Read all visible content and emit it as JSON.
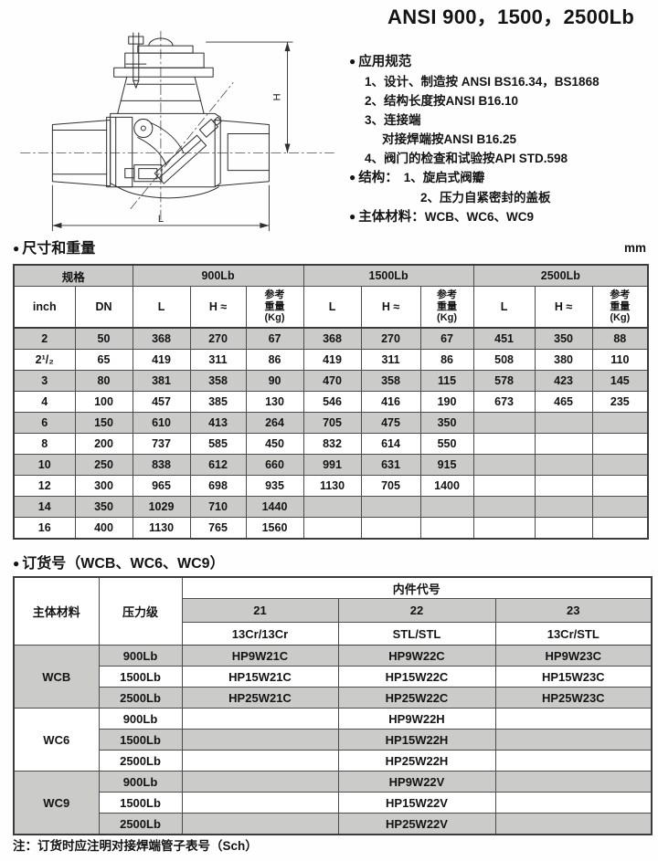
{
  "page": {
    "title": "ANSI 900，1500，2500Lb",
    "bullet": "●",
    "unit_label": "mm",
    "note": "注：订货时应注明对接焊端管子表号（Sch）"
  },
  "drawing": {
    "description": "swing check valve cross-section",
    "dim_height_label": "H",
    "dim_length_label": "L"
  },
  "specs": {
    "application": {
      "heading": "应用规范",
      "lines": [
        {
          "indent": 1,
          "text": "1、设计、制造按 ANSI BS16.34，BS1868"
        },
        {
          "indent": 1,
          "text": "2、结构长度按ANSI B16.10"
        },
        {
          "indent": 1,
          "text": "3、连接端"
        },
        {
          "indent": 2,
          "text": "对接焊端按ANSI B16.25"
        },
        {
          "indent": 1,
          "text": "4、阀门的检查和试验按API STD.598"
        }
      ]
    },
    "structure": {
      "heading": "结构：",
      "first_item": "1、旋启式阀瓣",
      "second_item": "2、压力自紧密封的盖板"
    },
    "material": {
      "heading": "主体材料：",
      "value": "WCB、WC6、WC9"
    }
  },
  "dim_table": {
    "section_title": "尺寸和重量",
    "spec_group_label": "规格",
    "pressure_groups": [
      "900Lb",
      "1500Lb",
      "2500Lb"
    ],
    "subheaders": [
      "inch",
      "DN",
      "L",
      "H ≈",
      "参考\n重量\n(Kg)",
      "L",
      "H ≈",
      "参考\n重量\n(Kg)",
      "L",
      "H ≈",
      "参考\n重量\n(Kg)"
    ],
    "rows": [
      [
        "2",
        "50",
        "368",
        "270",
        "67",
        "368",
        "270",
        "67",
        "451",
        "350",
        "88"
      ],
      [
        "2¹/₂",
        "65",
        "419",
        "311",
        "86",
        "419",
        "311",
        "86",
        "508",
        "380",
        "110"
      ],
      [
        "3",
        "80",
        "381",
        "358",
        "90",
        "470",
        "358",
        "115",
        "578",
        "423",
        "145"
      ],
      [
        "4",
        "100",
        "457",
        "385",
        "130",
        "546",
        "416",
        "190",
        "673",
        "465",
        "235"
      ],
      [
        "6",
        "150",
        "610",
        "413",
        "264",
        "705",
        "475",
        "350",
        "",
        "",
        ""
      ],
      [
        "8",
        "200",
        "737",
        "585",
        "450",
        "832",
        "614",
        "550",
        "",
        "",
        ""
      ],
      [
        "10",
        "250",
        "838",
        "612",
        "660",
        "991",
        "631",
        "915",
        "",
        "",
        ""
      ],
      [
        "12",
        "300",
        "965",
        "698",
        "935",
        "1130",
        "705",
        "1400",
        "",
        "",
        ""
      ],
      [
        "14",
        "350",
        "1029",
        "710",
        "1440",
        "",
        "",
        "",
        "",
        "",
        ""
      ],
      [
        "16",
        "400",
        "1130",
        "765",
        "1560",
        "",
        "",
        "",
        "",
        "",
        ""
      ]
    ]
  },
  "order_table": {
    "section_title": "订货号（WCB、WC6、WC9）",
    "material_header": "主体材料",
    "pressure_header": "压力级",
    "trim_header": "内件代号",
    "trim_codes": [
      "21",
      "22",
      "23"
    ],
    "trim_materials": [
      "13Cr/13Cr",
      "STL/STL",
      "13Cr/STL"
    ],
    "groups": [
      {
        "material": "WCB",
        "rows": [
          [
            "900Lb",
            "HP9W21C",
            "HP9W22C",
            "HP9W23C"
          ],
          [
            "1500Lb",
            "HP15W21C",
            "HP15W22C",
            "HP15W23C"
          ],
          [
            "2500Lb",
            "HP25W21C",
            "HP25W22C",
            "HP25W23C"
          ]
        ]
      },
      {
        "material": "WC6",
        "rows": [
          [
            "900Lb",
            "",
            "HP9W22H",
            ""
          ],
          [
            "1500Lb",
            "",
            "HP15W22H",
            ""
          ],
          [
            "2500Lb",
            "",
            "HP25W22H",
            ""
          ]
        ]
      },
      {
        "material": "WC9",
        "rows": [
          [
            "900Lb",
            "",
            "HP9W22V",
            ""
          ],
          [
            "1500Lb",
            "",
            "HP15W22V",
            ""
          ],
          [
            "2500Lb",
            "",
            "HP25W22V",
            ""
          ]
        ]
      }
    ]
  },
  "colors": {
    "row_shade": "#cbcbc9",
    "table_border": "#4c4c4c",
    "text": "#141414"
  }
}
